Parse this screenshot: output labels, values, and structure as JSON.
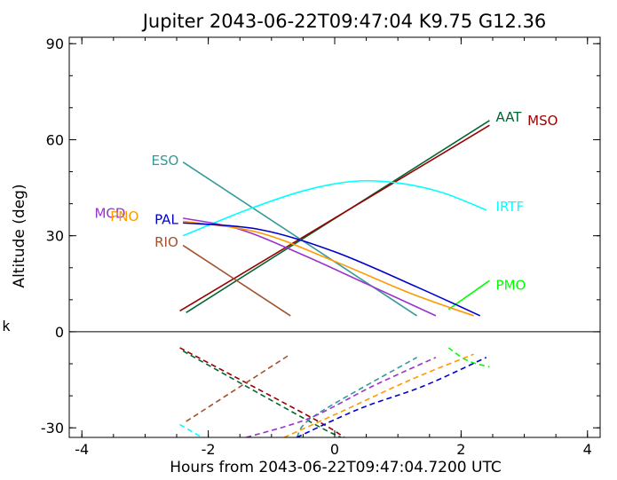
{
  "chart_data": {
    "type": "line",
    "title": "Jupiter 2043-06-22T09:47:04  K9.75  G12.36",
    "xlabel": "Hours from 2043-06-22T09:47:04.7200 UTC",
    "ylabel": "Altitude (deg)",
    "side_label": "k",
    "xlim": [
      -4.2,
      4.2
    ],
    "ylim": [
      -33,
      92
    ],
    "xticks": [
      "-4",
      "-2",
      "0",
      "2",
      "4"
    ],
    "yticks": [
      "90",
      "60",
      "30",
      "0",
      "-30"
    ],
    "series": [
      {
        "name": "AAT",
        "color": "#006633",
        "above": [
          [
            -2.35,
            6
          ],
          [
            2.45,
            66
          ]
        ],
        "below": [
          [
            -2.4,
            -6
          ],
          [
            -0.4,
            -28
          ],
          [
            0.1,
            -33
          ]
        ],
        "label_at": [
          2.55,
          67
        ]
      },
      {
        "name": "MSO",
        "color": "#990000",
        "above": [
          [
            -2.45,
            6.5
          ],
          [
            2.45,
            64.5
          ]
        ],
        "below": [
          [
            -2.45,
            -5
          ],
          [
            -0.35,
            -27
          ],
          [
            0.15,
            -33
          ]
        ],
        "label_at": [
          3.05,
          66
        ]
      },
      {
        "name": "ESO",
        "color": "#339999",
        "above": [
          [
            -2.4,
            53
          ],
          [
            1.3,
            5
          ]
        ],
        "below": [
          [
            -0.6,
            -33
          ],
          [
            -0.3,
            -26
          ],
          [
            1.3,
            -8
          ]
        ],
        "label_at": [
          -2.9,
          53.5
        ]
      },
      {
        "name": "IRTF",
        "color": "#00ffff",
        "above": [
          [
            -2.4,
            30
          ],
          [
            -1.4,
            38
          ],
          [
            -0.5,
            44
          ],
          [
            0.3,
            47
          ],
          [
            1.0,
            46.5
          ],
          [
            1.7,
            43.5
          ],
          [
            2.4,
            38
          ]
        ],
        "below": [
          [
            -2.45,
            -29
          ],
          [
            -2.1,
            -33
          ]
        ],
        "label_at": [
          2.55,
          39
        ]
      },
      {
        "name": "PMO",
        "color": "#00ff00",
        "above": [
          [
            1.8,
            7
          ],
          [
            2.45,
            16
          ]
        ],
        "below": [
          [
            1.8,
            -5
          ],
          [
            2.1,
            -9
          ],
          [
            2.45,
            -11
          ]
        ],
        "label_at": [
          2.55,
          14.5
        ]
      },
      {
        "name": "MCD",
        "color": "#9933cc",
        "above": [
          [
            -2.4,
            35.5
          ],
          [
            -1.5,
            32
          ],
          [
            -0.5,
            24
          ],
          [
            0.5,
            15
          ],
          [
            1.6,
            5
          ]
        ],
        "below": [
          [
            -1.4,
            -33
          ],
          [
            -0.4,
            -27
          ],
          [
            0.6,
            -17
          ],
          [
            1.6,
            -8
          ]
        ],
        "label_at": [
          -3.8,
          37
        ]
      },
      {
        "name": "PNO",
        "color": "#ff9900",
        "above": [
          [
            -2.4,
            34.5
          ],
          [
            -1.2,
            31
          ],
          [
            0,
            22
          ],
          [
            1.2,
            12
          ],
          [
            2.2,
            5
          ]
        ],
        "below": [
          [
            -0.8,
            -33
          ],
          [
            0.1,
            -25
          ],
          [
            1.2,
            -15
          ],
          [
            2.2,
            -7
          ]
        ],
        "label_at": [
          -3.55,
          36
        ]
      },
      {
        "name": "PAL",
        "color": "#0000cc",
        "above": [
          [
            -2.4,
            34
          ],
          [
            -1.2,
            32
          ],
          [
            0,
            25
          ],
          [
            1.3,
            14
          ],
          [
            2.3,
            5
          ]
        ],
        "below": [
          [
            -0.6,
            -33
          ],
          [
            0.4,
            -24
          ],
          [
            1.4,
            -17
          ],
          [
            2.4,
            -8
          ]
        ],
        "label_at": [
          -2.85,
          35
        ]
      },
      {
        "name": "RIO",
        "color": "#a0522d",
        "above": [
          [
            -2.4,
            27
          ],
          [
            -0.7,
            5
          ]
        ],
        "below": [
          [
            -2.35,
            -28
          ],
          [
            -0.7,
            -7
          ]
        ],
        "label_at": [
          -2.85,
          28
        ]
      }
    ]
  }
}
